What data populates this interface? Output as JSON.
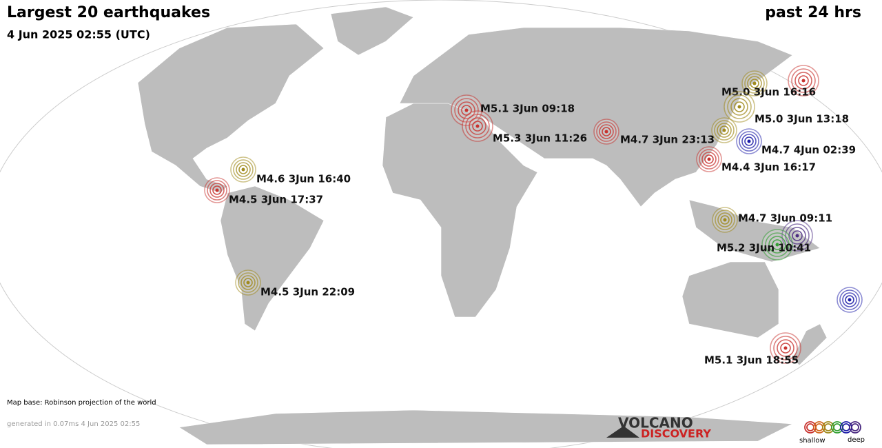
{
  "header": {
    "title": "Largest 20 earthquakes",
    "period": "past 24 hrs",
    "timestamp": "4 Jun 2025 02:55 (UTC)"
  },
  "quakes": [
    {
      "label": "M5.1  3Jun 09:18"
    },
    {
      "label": "M5.3  3Jun 11:26"
    },
    {
      "label": "M4.7  3Jun 23:13"
    },
    {
      "label": "M5.0  3Jun 16:16"
    },
    {
      "label": "M5.0  3Jun 13:18"
    },
    {
      "label": "M4.7  4Jun 02:39"
    },
    {
      "label": "M4.4  3Jun 16:17"
    },
    {
      "label": "M4.6  3Jun 16:40"
    },
    {
      "label": "M4.5  3Jun 17:37"
    },
    {
      "label": "M4.7  3Jun 09:11"
    },
    {
      "label": "M5.2  3Jun 10:41"
    },
    {
      "label": "M4.5  3Jun 22:09"
    },
    {
      "label": "M5.1  3Jun 18:55"
    }
  ],
  "footer": {
    "map_base": "Map base: Robinson projection of the world",
    "generated": "generated in 0.07ms  4 Jun 2025 02:55"
  },
  "logo": {
    "line1": "VOLCANO",
    "line2": "DISCOVERY"
  },
  "legend": {
    "shallow": "shallow",
    "deep": "deep"
  }
}
